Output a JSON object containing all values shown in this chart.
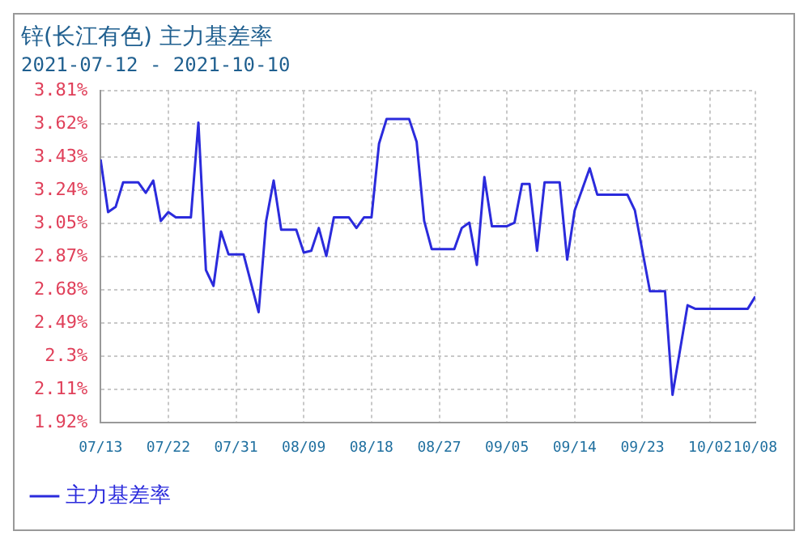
{
  "chart_data": {
    "type": "line",
    "title": "锌(长江有色) 主力基差率",
    "subtitle": "2021-07-12 - 2021-10-10",
    "x": [
      "2021-07-13",
      "2021-07-14",
      "2021-07-15",
      "2021-07-16",
      "2021-07-18",
      "2021-07-19",
      "2021-07-20",
      "2021-07-21",
      "2021-07-22",
      "2021-07-23",
      "2021-07-25",
      "2021-07-26",
      "2021-07-27",
      "2021-07-28",
      "2021-07-29",
      "2021-07-30",
      "2021-08-01",
      "2021-08-03",
      "2021-08-04",
      "2021-08-05",
      "2021-08-06",
      "2021-08-08",
      "2021-08-09",
      "2021-08-10",
      "2021-08-11",
      "2021-08-12",
      "2021-08-13",
      "2021-08-15",
      "2021-08-16",
      "2021-08-17",
      "2021-08-18",
      "2021-08-19",
      "2021-08-20",
      "2021-08-23",
      "2021-08-24",
      "2021-08-25",
      "2021-08-26",
      "2021-08-29",
      "2021-08-30",
      "2021-08-31",
      "2021-09-01",
      "2021-09-02",
      "2021-09-03",
      "2021-09-05",
      "2021-09-06",
      "2021-09-07",
      "2021-09-08",
      "2021-09-09",
      "2021-09-10",
      "2021-09-12",
      "2021-09-13",
      "2021-09-14",
      "2021-09-16",
      "2021-09-17",
      "2021-09-21",
      "2021-09-22",
      "2021-09-24",
      "2021-09-26",
      "2021-09-27",
      "2021-09-29",
      "2021-09-30",
      "2021-10-07",
      "2021-10-08"
    ],
    "series": [
      {
        "name": "主力基差率",
        "color": "#2b2bdc",
        "values": [
          3.42,
          3.12,
          3.15,
          3.29,
          3.29,
          3.23,
          3.3,
          3.07,
          3.12,
          3.09,
          3.09,
          3.63,
          2.79,
          2.7,
          3.01,
          2.88,
          2.88,
          2.55,
          3.07,
          3.3,
          3.02,
          3.02,
          2.89,
          2.9,
          3.03,
          2.87,
          3.09,
          3.09,
          3.03,
          3.09,
          3.09,
          3.51,
          3.65,
          3.65,
          3.52,
          3.07,
          2.91,
          2.91,
          3.03,
          3.06,
          2.82,
          3.32,
          3.04,
          3.04,
          3.06,
          3.28,
          3.28,
          2.9,
          3.29,
          3.29,
          2.85,
          3.13,
          3.37,
          3.22,
          3.22,
          3.13,
          2.67,
          2.67,
          2.08,
          2.59,
          2.57,
          2.57,
          2.64
        ]
      }
    ],
    "xlim": [
      "2021-07-13",
      "2021-10-08"
    ],
    "xticks": [
      {
        "value": "2021-07-13",
        "label": "07/13"
      },
      {
        "value": "2021-07-22",
        "label": "07/22"
      },
      {
        "value": "2021-07-31",
        "label": "07/31"
      },
      {
        "value": "2021-08-09",
        "label": "08/09"
      },
      {
        "value": "2021-08-18",
        "label": "08/18"
      },
      {
        "value": "2021-08-27",
        "label": "08/27"
      },
      {
        "value": "2021-09-05",
        "label": "09/05"
      },
      {
        "value": "2021-09-14",
        "label": "09/14"
      },
      {
        "value": "2021-09-23",
        "label": "09/23"
      },
      {
        "value": "2021-10-02",
        "label": "10/02"
      },
      {
        "value": "2021-10-08",
        "label": "10/08"
      }
    ],
    "ylim": [
      1.92,
      3.81
    ],
    "yticks": [
      {
        "value": 1.92,
        "label": "1.92%"
      },
      {
        "value": 2.109,
        "label": "2.11%"
      },
      {
        "value": 2.298,
        "label": "2.3%"
      },
      {
        "value": 2.487,
        "label": "2.49%"
      },
      {
        "value": 2.676,
        "label": "2.68%"
      },
      {
        "value": 2.865,
        "label": "2.87%"
      },
      {
        "value": 3.054,
        "label": "3.05%"
      },
      {
        "value": 3.243,
        "label": "3.24%"
      },
      {
        "value": 3.432,
        "label": "3.43%"
      },
      {
        "value": 3.621,
        "label": "3.62%"
      },
      {
        "value": 3.81,
        "label": "3.81%"
      }
    ],
    "grid": true,
    "legend": "bottom left",
    "marker": "none",
    "line_style": "solid"
  }
}
